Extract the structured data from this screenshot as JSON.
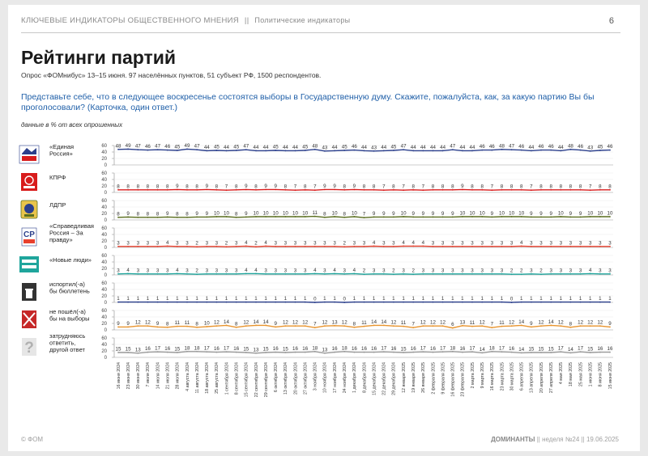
{
  "header": {
    "section": "КЛЮЧЕВЫЕ ИНДИКАТОРЫ ОБЩЕСТВЕННОГО МНЕНИЯ",
    "separator": "||",
    "subsection": "Политические индикаторы",
    "page_number": "6"
  },
  "title": "Рейтинги партий",
  "survey": "Опрос «ФОМнибус» 13–15 июня. 97 населённых пунктов, 51 субъект РФ, 1500 респондентов.",
  "question": "Представьте себе, что в следующее воскресенье состоятся выборы в Государственную думу. Скажите, пожалуйста, как, за какую партию Вы бы проголосовали? (Карточка, один ответ.)",
  "note": "данные в % от всех опрошенных",
  "footer": {
    "copyright": "© ФОМ",
    "brand": "ДОМИНАНТЫ",
    "separator": "||",
    "week": "неделя №24",
    "date": "19.06.2025"
  },
  "chart_data": {
    "type": "line",
    "ylim": [
      0,
      60
    ],
    "yticks": [
      0,
      20,
      40,
      60
    ],
    "x": [
      "16 июня 2024",
      "23 июня 2024",
      "30 июня 2024",
      "7 июля 2024",
      "14 июля 2024",
      "21 июля 2024",
      "28 июля 2024",
      "4 августа 2024",
      "11 августа 2024",
      "18 августа 2024",
      "25 августа 2024",
      "1 сентября 2024",
      "8 сентября 2024",
      "15 сентября 2024",
      "22 сентября 2024",
      "29 сентября 2024",
      "6 октября 2024",
      "13 октября 2024",
      "20 октября 2024",
      "27 октября 2024",
      "3 ноября 2024",
      "10 ноября 2024",
      "17 ноября 2024",
      "24 ноября 2024",
      "1 декабря 2024",
      "8 декабря 2024",
      "15 декабря 2024",
      "22 декабря 2024",
      "29 декабря 2024",
      "12 января 2025",
      "19 января 2025",
      "26 января 2025",
      "2 февраля 2025",
      "9 февраля 2025",
      "16 февраля 2025",
      "23 февраля 2025",
      "2 марта 2025",
      "9 марта 2025",
      "16 марта 2025",
      "23 марта 2025",
      "30 марта 2025",
      "6 апреля 2025",
      "13 апреля 2025",
      "20 апреля 2025",
      "27 апреля 2025",
      "4 мая 2025",
      "18 мая 2025",
      "25 мая 2025",
      "1 июня 2025",
      "8 июня 2025",
      "15 июня 2025"
    ],
    "series": [
      {
        "name": "«Единая Россия»",
        "color": "#2b3f8c",
        "icon": "united-russia-logo",
        "values": [
          48,
          49,
          47,
          46,
          47,
          46,
          45,
          49,
          47,
          44,
          45,
          44,
          45,
          47,
          44,
          44,
          45,
          44,
          44,
          45,
          48,
          43,
          44,
          45,
          46,
          44,
          43,
          44,
          45,
          47,
          44,
          44,
          44,
          44,
          47,
          44,
          44,
          46,
          46,
          48,
          47,
          46,
          44,
          46,
          46,
          44,
          48,
          46,
          43,
          45,
          46
        ]
      },
      {
        "name": "КПРФ",
        "color": "#d81c1c",
        "icon": "kprf-logo",
        "values": [
          8,
          8,
          8,
          8,
          8,
          8,
          9,
          8,
          8,
          9,
          8,
          7,
          8,
          9,
          8,
          9,
          9,
          8,
          7,
          8,
          7,
          9,
          9,
          8,
          9,
          8,
          8,
          7,
          8,
          7,
          8,
          7,
          8,
          8,
          8,
          9,
          8,
          8,
          7,
          8,
          8,
          8,
          7,
          8,
          8,
          8,
          8,
          8,
          7,
          8,
          8
        ]
      },
      {
        "name": "ЛДПР",
        "color": "#5a6e1e",
        "icon": "ldpr-logo",
        "values": [
          8,
          9,
          8,
          8,
          8,
          9,
          8,
          8,
          9,
          9,
          10,
          10,
          8,
          9,
          10,
          10,
          10,
          10,
          10,
          10,
          11,
          8,
          10,
          8,
          10,
          7,
          9,
          9,
          9,
          10,
          9,
          9,
          9,
          9,
          9,
          10,
          10,
          10,
          9,
          10,
          10,
          10,
          9,
          9,
          9,
          10,
          9,
          9,
          10,
          10,
          10
        ]
      },
      {
        "name": "«Справедливая Россия – За правду»",
        "color": "#e8402e",
        "icon": "sr-logo",
        "values": [
          3,
          3,
          3,
          3,
          3,
          4,
          3,
          3,
          2,
          3,
          3,
          2,
          3,
          4,
          2,
          4,
          3,
          3,
          3,
          3,
          3,
          3,
          3,
          2,
          3,
          3,
          4,
          3,
          3,
          4,
          4,
          4,
          3,
          3,
          3,
          3,
          3,
          3,
          3,
          3,
          3,
          4,
          3,
          3,
          3,
          3,
          3,
          3,
          3,
          3,
          3
        ]
      },
      {
        "name": "«Новые люди»",
        "color": "#1fa59c",
        "icon": "new-people-logo",
        "values": [
          3,
          4,
          3,
          3,
          3,
          3,
          4,
          3,
          2,
          3,
          3,
          3,
          3,
          4,
          4,
          3,
          3,
          3,
          3,
          3,
          4,
          3,
          4,
          3,
          4,
          2,
          3,
          3,
          2,
          3,
          2,
          3,
          3,
          3,
          3,
          3,
          3,
          3,
          3,
          3,
          2,
          2,
          3,
          2,
          3,
          3,
          3,
          3,
          4,
          3,
          3
        ]
      },
      {
        "name": "испортил(-а) бы бюллетень",
        "color": "#2b3f8c",
        "icon": "ballot-trash-icon",
        "values": [
          1,
          1,
          1,
          1,
          1,
          1,
          1,
          1,
          1,
          1,
          1,
          1,
          1,
          1,
          1,
          1,
          1,
          1,
          1,
          1,
          0,
          1,
          1,
          0,
          1,
          1,
          1,
          1,
          1,
          1,
          1,
          1,
          1,
          1,
          1,
          1,
          1,
          1,
          1,
          1,
          0,
          1,
          1,
          1,
          1,
          1,
          1,
          1,
          1,
          1,
          1
        ]
      },
      {
        "name": "не пошёл(-а) бы на выборы",
        "color": "#e8942e",
        "icon": "no-vote-icon",
        "values": [
          9,
          9,
          12,
          12,
          9,
          8,
          11,
          11,
          8,
          10,
          12,
          14,
          8,
          12,
          14,
          14,
          9,
          12,
          12,
          12,
          7,
          12,
          13,
          12,
          8,
          11,
          14,
          14,
          12,
          11,
          7,
          12,
          12,
          12,
          6,
          13,
          11,
          12,
          7,
          11,
          12,
          14,
          9,
          12,
          14,
          12,
          8,
          12,
          12,
          12,
          9
        ]
      },
      {
        "name": "затрудняюсь ответить, другой ответ",
        "color": "#999999",
        "icon": "question-icon",
        "values": [
          15,
          15,
          13,
          16,
          17,
          16,
          15,
          18,
          18,
          17,
          16,
          17,
          16,
          15,
          13,
          15,
          16,
          15,
          16,
          16,
          18,
          13,
          16,
          18,
          16,
          16,
          16,
          17,
          16,
          15,
          16,
          17,
          16,
          17,
          18,
          16,
          17,
          14,
          18,
          17,
          16,
          14,
          15,
          15,
          15,
          17,
          14,
          17,
          15,
          16,
          16
        ]
      }
    ]
  }
}
